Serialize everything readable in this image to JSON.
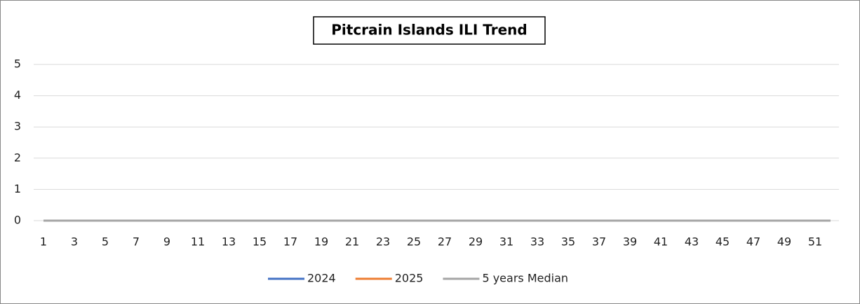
{
  "chart_data": {
    "type": "line",
    "title": "Pitcrain Islands ILI Trend",
    "categories": [
      1,
      null,
      3,
      null,
      5,
      null,
      7,
      null,
      9,
      null,
      11,
      null,
      13,
      null,
      15,
      null,
      17,
      null,
      19,
      null,
      21,
      null,
      23,
      null,
      25,
      null,
      27,
      null,
      29,
      null,
      31,
      null,
      33,
      null,
      35,
      null,
      37,
      null,
      39,
      null,
      41,
      null,
      43,
      null,
      45,
      null,
      47,
      null,
      49,
      null,
      51,
      null
    ],
    "series": [
      {
        "name": "2024",
        "color": "#4472c4",
        "values": [
          0,
          0,
          0,
          0,
          0,
          0,
          0,
          0,
          0,
          0,
          0,
          0,
          0,
          0,
          0,
          0,
          0,
          0,
          0,
          0,
          0,
          0,
          0,
          0,
          0,
          0,
          0,
          0,
          0,
          0,
          0,
          0,
          0,
          0,
          0,
          0,
          0,
          0,
          0,
          0,
          0,
          0,
          0,
          0,
          0,
          0,
          0,
          0,
          0,
          0,
          0,
          0
        ]
      },
      {
        "name": "2025",
        "color": "#ed7d31",
        "values": [
          0,
          0,
          0,
          0,
          0,
          0,
          0,
          0,
          0,
          0,
          0,
          0,
          0,
          0,
          0,
          0,
          0,
          0,
          0,
          0,
          0,
          0,
          0,
          0,
          0,
          0,
          0,
          0,
          0,
          0,
          0,
          0,
          0,
          0,
          0,
          0,
          0,
          0,
          0,
          0,
          0,
          0,
          0,
          0,
          0,
          0,
          0,
          0,
          0,
          0,
          0,
          0
        ]
      },
      {
        "name": "5 years Median",
        "color": "#a5a5a5",
        "values": [
          0,
          0,
          0,
          0,
          0,
          0,
          0,
          0,
          0,
          0,
          0,
          0,
          0,
          0,
          0,
          0,
          0,
          0,
          0,
          0,
          0,
          0,
          0,
          0,
          0,
          0,
          0,
          0,
          0,
          0,
          0,
          0,
          0,
          0,
          0,
          0,
          0,
          0,
          0,
          0,
          0,
          0,
          0,
          0,
          0,
          0,
          0,
          0,
          0,
          0,
          0,
          0
        ]
      }
    ],
    "ylim": [
      0,
      5
    ],
    "yticks": [
      0,
      1,
      2,
      3,
      4,
      5
    ],
    "grid": true,
    "legend": "bottom"
  }
}
